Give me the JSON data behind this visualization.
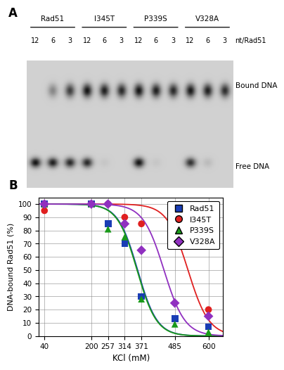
{
  "panel_A": {
    "groups": [
      "Rad51",
      "I345T",
      "P339S",
      "V328A"
    ],
    "lane_labels": [
      "12",
      "6",
      "3",
      "12",
      "6",
      "3",
      "12",
      "6",
      "3",
      "12",
      "6",
      "3"
    ],
    "nt_label": "nt/Rad51",
    "bound_label": "Bound DNA",
    "free_label": "Free DNA",
    "bound_intensity": [
      0.0,
      0.35,
      0.7,
      0.9,
      0.85,
      0.8,
      0.9,
      0.85,
      0.8,
      0.88,
      0.85,
      0.78
    ],
    "free_intensity": [
      0.9,
      0.85,
      0.8,
      0.8,
      0.05,
      0.0,
      0.9,
      0.05,
      0.0,
      0.75,
      0.1,
      0.0
    ],
    "gel_bg": 0.82
  },
  "panel_B": {
    "xlabel": "KCl (mM)",
    "ylabel": "DNA-bound Rad51 (%)",
    "xticks": [
      40,
      200,
      257,
      314,
      371,
      485,
      600
    ],
    "ylim": [
      0,
      105
    ],
    "xlim": [
      20,
      650
    ],
    "series": {
      "Rad51": {
        "color": "#1a3db5",
        "marker": "s",
        "x": [
          40,
          200,
          257,
          314,
          371,
          485,
          600
        ],
        "y": [
          100,
          100,
          85,
          70,
          30,
          13,
          7
        ],
        "curve_midpoint": 358,
        "curve_steepness": 0.03
      },
      "I345T": {
        "color": "#e02020",
        "marker": "o",
        "x": [
          40,
          200,
          257,
          314,
          371,
          485,
          600
        ],
        "y": [
          95,
          100,
          100,
          90,
          85,
          70,
          20
        ],
        "curve_midpoint": 530,
        "curve_steepness": 0.028
      },
      "P339S": {
        "color": "#1a9a1a",
        "marker": "^",
        "x": [
          40,
          200,
          257,
          314,
          371,
          485,
          600
        ],
        "y": [
          100,
          100,
          81,
          75,
          28,
          9,
          3
        ],
        "curve_midpoint": 356,
        "curve_steepness": 0.03
      },
      "V328A": {
        "color": "#9030c0",
        "marker": "D",
        "x": [
          40,
          200,
          257,
          314,
          371,
          485,
          600
        ],
        "y": [
          100,
          100,
          100,
          85,
          65,
          25,
          15
        ],
        "curve_midpoint": 448,
        "curve_steepness": 0.028
      }
    },
    "legend_order": [
      "Rad51",
      "I345T",
      "P339S",
      "V328A"
    ]
  }
}
